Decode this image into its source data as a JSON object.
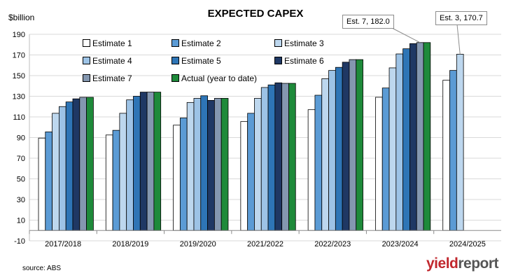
{
  "chart_data": {
    "type": "bar",
    "title": "EXPECTED CAPEX",
    "ylabel": "$billion",
    "ylim": [
      -10,
      190
    ],
    "yticks": [
      -10,
      10,
      30,
      50,
      70,
      90,
      110,
      130,
      150,
      170,
      190
    ],
    "grid": true,
    "legend_position": "top-left",
    "categories": [
      "2017/2018",
      "2018/2019",
      "2019/2020",
      "2021/2022",
      "2022/2023",
      "2023/2024",
      "2024/2025"
    ],
    "series": [
      {
        "name": "Estimate 1",
        "color": "#ffffff",
        "values": [
          89.5,
          92.5,
          102,
          105.5,
          117,
          129,
          145.5
        ]
      },
      {
        "name": "Estimate 2",
        "color": "#5b9bd5",
        "values": [
          95.5,
          97,
          109,
          113.5,
          131,
          138,
          155
        ]
      },
      {
        "name": "Estimate 3",
        "color": "#bdd7ee",
        "values": [
          113.5,
          113.5,
          124,
          128,
          147,
          157.5,
          170.7
        ]
      },
      {
        "name": "Estimate 4",
        "color": "#9dc3e6",
        "values": [
          120,
          126.5,
          128,
          138.5,
          155,
          171,
          null
        ]
      },
      {
        "name": "Estimate 5",
        "color": "#2e75b6",
        "values": [
          124.5,
          130,
          130.5,
          141,
          158,
          176,
          null
        ]
      },
      {
        "name": "Estimate 6",
        "color": "#1f3864",
        "values": [
          127.5,
          134,
          126,
          143,
          163,
          181,
          null
        ]
      },
      {
        "name": "Estimate 7",
        "color": "#8497b0",
        "values": [
          129,
          134,
          128,
          142.5,
          165.5,
          182.0,
          null
        ]
      },
      {
        "name": "Actual (year to date)",
        "color": "#1e8a3a",
        "values": [
          129,
          134,
          128,
          142.5,
          165.5,
          182,
          null
        ]
      }
    ],
    "annotations": [
      {
        "text": "Est. 7, 182.0",
        "category": "2023/2024",
        "series": "Estimate 7"
      },
      {
        "text": "Est. 3, 170.7",
        "category": "2024/2025",
        "series": "Estimate 3"
      }
    ]
  },
  "footer": {
    "source": "source: ABS",
    "logo_part1": "yield",
    "logo_part2": "report"
  }
}
